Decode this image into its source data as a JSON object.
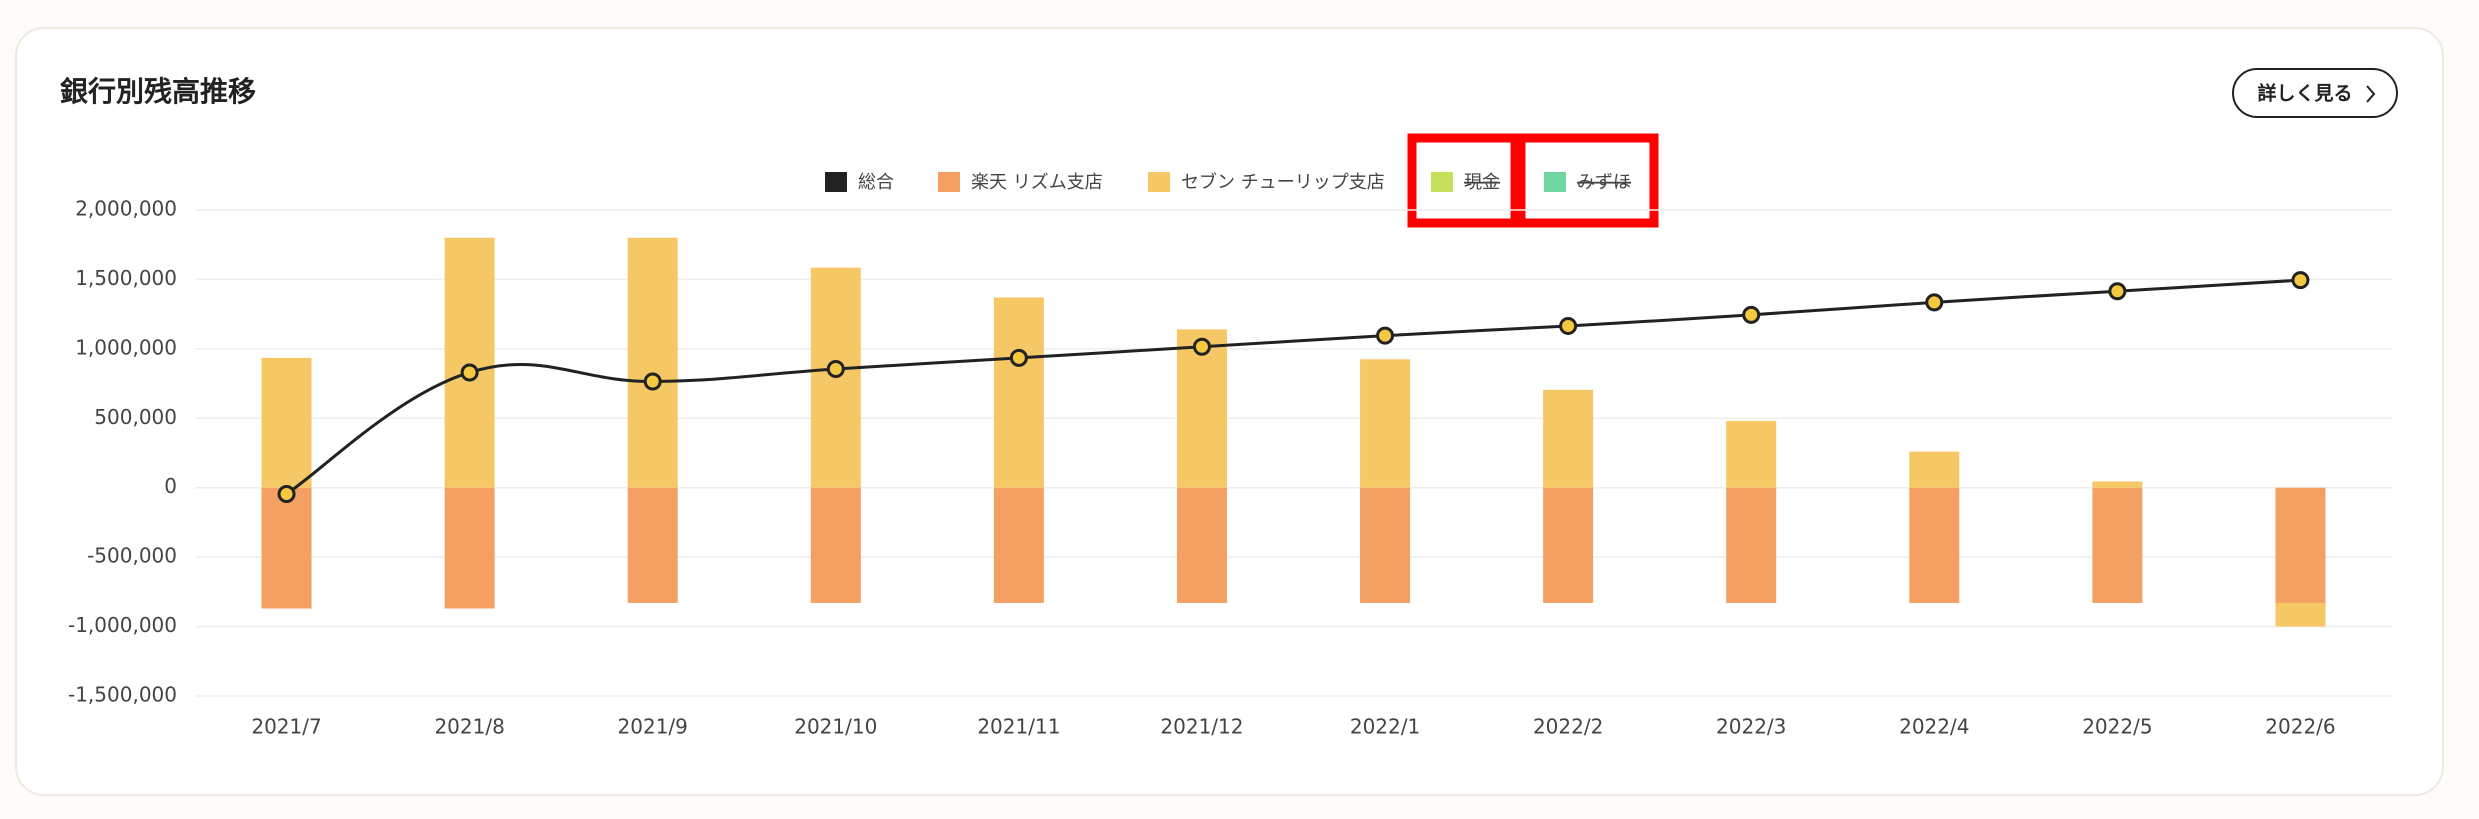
{
  "header": {
    "title": "銀行別残高推移",
    "button": "詳しく見る"
  },
  "chart_data": {
    "type": "bar",
    "categories": [
      "2021/7",
      "2021/8",
      "2021/9",
      "2021/10",
      "2021/11",
      "2021/12",
      "2022/1",
      "2022/2",
      "2022/3",
      "2022/4",
      "2022/5",
      "2022/6"
    ],
    "series": [
      {
        "name": "総合",
        "type": "line",
        "color": "#222222",
        "values": [
          -45000,
          830000,
          765000,
          855000,
          935000,
          1015000,
          1095000,
          1165000,
          1245000,
          1335000,
          1415000,
          1495000
        ]
      },
      {
        "name": "楽天 リズム支店",
        "color": "#f4a062",
        "values": [
          -870000,
          -870000,
          -830000,
          -830000,
          -830000,
          -830000,
          -830000,
          -830000,
          -830000,
          -830000,
          -830000,
          -830000
        ]
      },
      {
        "name": "セブン チューリップ支店",
        "color": "#f5c865",
        "values": [
          935000,
          1800000,
          1800000,
          1585000,
          1370000,
          1140000,
          925000,
          705000,
          480000,
          260000,
          45000,
          -170000
        ]
      },
      {
        "name": "現金",
        "color": "#c5e05a",
        "hidden": true,
        "values": [
          null,
          null,
          null,
          null,
          null,
          null,
          null,
          null,
          null,
          null,
          null,
          null
        ]
      },
      {
        "name": "みずほ",
        "color": "#6fd6a0",
        "hidden": true,
        "values": [
          null,
          null,
          null,
          null,
          null,
          null,
          null,
          null,
          null,
          null,
          null,
          null
        ]
      }
    ],
    "ylim": [
      -1500000,
      2000000
    ],
    "yticks": [
      {
        "value": -1500000,
        "label": "-1,500,000"
      },
      {
        "value": -1000000,
        "label": "-1,000,000"
      },
      {
        "value": -500000,
        "label": "-500,000"
      },
      0,
      {
        "value": 500000,
        "label": "500,000"
      },
      {
        "value": 1000000,
        "label": "1,000,000"
      },
      {
        "value": 1500000,
        "label": "1,500,000"
      },
      {
        "value": 2000000,
        "label": "2,000,000"
      }
    ],
    "grid": true,
    "legend": "top"
  }
}
